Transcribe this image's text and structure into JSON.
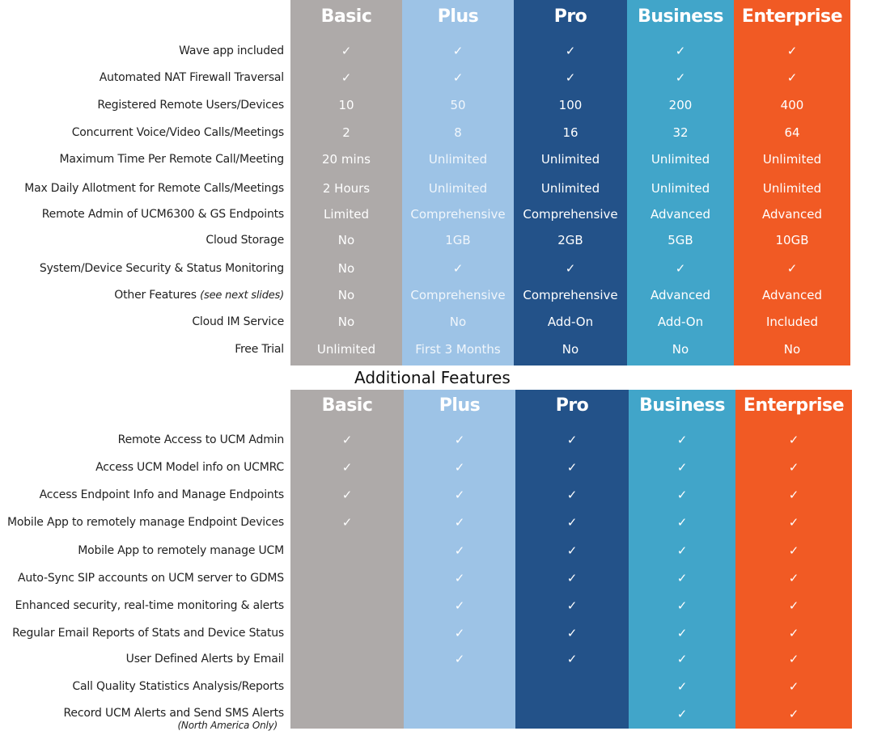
{
  "colors": {
    "Basic": "#aeaaa9",
    "Plus": "#9dc3e6",
    "Pro": "#235289",
    "Business": "#41a5c9",
    "Enterprise": "#f15a24"
  },
  "plans": [
    "Basic",
    "Plus",
    "Pro",
    "Business",
    "Enterprise"
  ],
  "check_icon": "checkmark-icon",
  "main_table": {
    "rows": [
      {
        "label": "Wave app included",
        "values": [
          "✓",
          "✓",
          "✓",
          "✓",
          "✓"
        ]
      },
      {
        "label": "Automated NAT Firewall Traversal",
        "values": [
          "✓",
          "✓",
          "✓",
          "✓",
          "✓"
        ]
      },
      {
        "label": "Registered Remote Users/Devices",
        "values": [
          "10",
          "50",
          "100",
          "200",
          "400"
        ]
      },
      {
        "label": "Concurrent Voice/Video Calls/Meetings",
        "values": [
          "2",
          "8",
          "16",
          "32",
          "64"
        ]
      },
      {
        "label": "Maximum Time Per Remote Call/Meeting",
        "values": [
          "20 mins",
          "Unlimited",
          "Unlimited",
          "Unlimited",
          "Unlimited"
        ]
      },
      {
        "label": "Max Daily Allotment for Remote Calls/Meetings",
        "values": [
          "2 Hours",
          "Unlimited",
          "Unlimited",
          "Unlimited",
          "Unlimited"
        ]
      },
      {
        "label": "Remote Admin of UCM6300 & GS Endpoints",
        "values": [
          "Limited",
          "Comprehensive",
          "Comprehensive",
          "Advanced",
          "Advanced"
        ]
      },
      {
        "label": "Cloud Storage",
        "values": [
          "No",
          "1GB",
          "2GB",
          "5GB",
          "10GB"
        ]
      },
      {
        "label": "System/Device Security & Status Monitoring",
        "values": [
          "No",
          "✓",
          "✓",
          "✓",
          "✓"
        ]
      },
      {
        "label": "Other Features",
        "label_note": "(see next slides)",
        "values": [
          "No",
          "Comprehensive",
          "Comprehensive",
          "Advanced",
          "Advanced"
        ]
      },
      {
        "label": "Cloud IM Service",
        "values": [
          "No",
          "No",
          "Add-On",
          "Add-On",
          "Included"
        ]
      },
      {
        "label": "Free Trial",
        "values": [
          "Unlimited",
          "First 3 Months",
          "No",
          "No",
          "No"
        ]
      }
    ]
  },
  "additional_title": "Additional Features",
  "additional_table": {
    "rows": [
      {
        "label": "Remote Access to UCM Admin",
        "values": [
          true,
          true,
          true,
          true,
          true
        ]
      },
      {
        "label": "Access UCM Model info on UCMRC",
        "values": [
          true,
          true,
          true,
          true,
          true
        ]
      },
      {
        "label": "Access Endpoint Info and Manage Endpoints",
        "values": [
          true,
          true,
          true,
          true,
          true
        ]
      },
      {
        "label": "Mobile App to remotely manage Endpoint Devices",
        "values": [
          true,
          true,
          true,
          true,
          true
        ]
      },
      {
        "label": "Mobile App to remotely manage UCM",
        "values": [
          false,
          true,
          true,
          true,
          true
        ]
      },
      {
        "label": "Auto-Sync SIP accounts on UCM server to GDMS",
        "values": [
          false,
          true,
          true,
          true,
          true
        ]
      },
      {
        "label": "Enhanced security, real-time monitoring & alerts",
        "values": [
          false,
          true,
          true,
          true,
          true
        ]
      },
      {
        "label": "Regular Email Reports of Stats and Device Status",
        "values": [
          false,
          true,
          true,
          true,
          true
        ]
      },
      {
        "label": "User Defined Alerts by Email",
        "values": [
          false,
          true,
          true,
          true,
          true
        ]
      },
      {
        "label": "Call Quality Statistics Analysis/Reports",
        "values": [
          false,
          false,
          false,
          true,
          true
        ]
      },
      {
        "label": "Record UCM Alerts and Send SMS Alerts",
        "label_note": "(North America Only)",
        "values": [
          false,
          false,
          false,
          true,
          true
        ]
      }
    ]
  }
}
